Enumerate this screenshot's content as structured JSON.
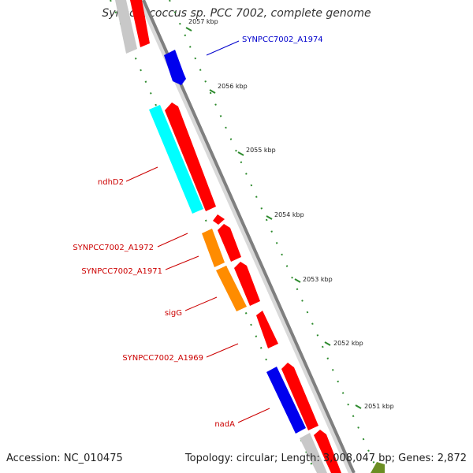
{
  "title": "Synechococcus sp. PCC 7002, complete genome",
  "footer": {
    "accession": "Accession: NC_010475",
    "summary": "Topology: circular; Length: 3,008,047 bp; Genes: 2,872"
  },
  "colors": {
    "backbone": "#888888",
    "tick": "#228b22",
    "label_red": "#cc0000",
    "label_blue": "#0000cc",
    "gene_red": "#ff0000",
    "gene_blue": "#0000ee",
    "gene_cyan": "#00ffff",
    "gene_orange": "#ff8c00",
    "gene_gray": "#c8c8c8",
    "gene_green": "#6b8e23"
  },
  "scale_ticks": [
    {
      "label": "2057 kbp",
      "partial": true
    },
    {
      "label": "2056 kbp"
    },
    {
      "label": "2055 kbp"
    },
    {
      "label": "2054 kbp"
    },
    {
      "label": "2053 kbp"
    },
    {
      "label": "2052 kbp"
    },
    {
      "label": "2051 kbp"
    }
  ],
  "gene_labels": [
    {
      "name": "SYNPCC7002_A1974",
      "color": "blue"
    },
    {
      "name": "ndhD2",
      "color": "red"
    },
    {
      "name": "SYNPCC7002_A1972",
      "color": "red"
    },
    {
      "name": "SYNPCC7002_A1971",
      "color": "red"
    },
    {
      "name": "sigG",
      "color": "red"
    },
    {
      "name": "SYNPCC7002_A1969",
      "color": "red"
    },
    {
      "name": "nadA",
      "color": "red"
    }
  ]
}
